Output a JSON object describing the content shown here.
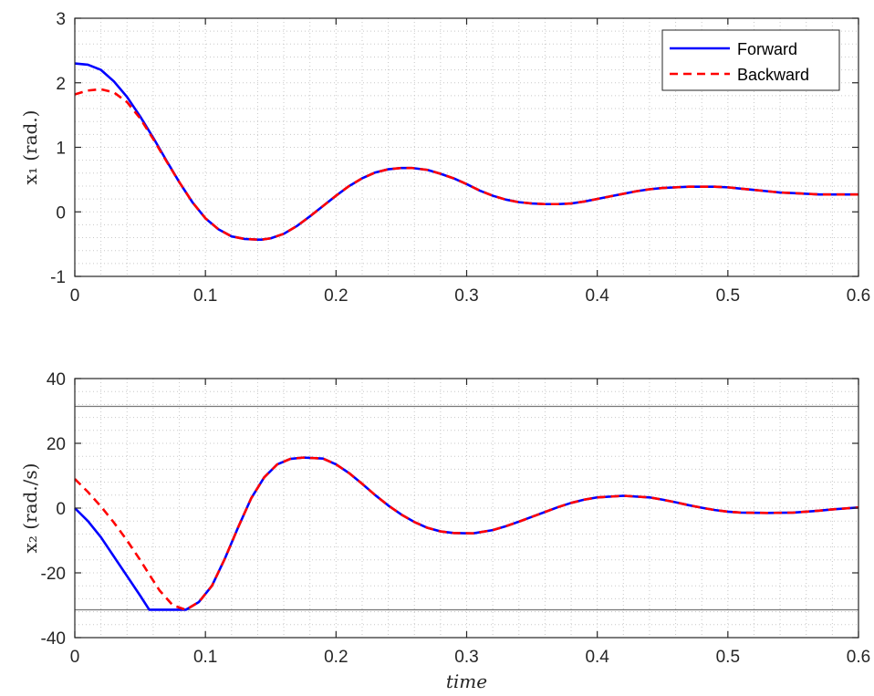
{
  "colors": {
    "forward": "#0000ff",
    "backward": "#ff0000",
    "limit_line": "#777777",
    "axis": "#262626",
    "grid": "#c8c8c8",
    "background": "#ffffff"
  },
  "chart_data": [
    {
      "type": "line",
      "ylabel": "x₁ (rad.)",
      "xlabel": "",
      "xlim": [
        0,
        0.6
      ],
      "ylim": [
        -1,
        3
      ],
      "xticks": [
        0,
        0.1,
        0.2,
        0.3,
        0.4,
        0.5,
        0.6
      ],
      "xtick_labels": [
        "0",
        "0.1",
        "0.2",
        "0.3",
        "0.4",
        "0.5",
        "0.6"
      ],
      "yticks": [
        -1,
        0,
        1,
        2,
        3
      ],
      "ytick_labels": [
        "-1",
        "0",
        "1",
        "2",
        "3"
      ],
      "grid": "minor dotted",
      "legend": {
        "placement": "top-right",
        "entries": [
          "Forward",
          "Backward"
        ]
      },
      "series": [
        {
          "name": "Forward",
          "style": "solid",
          "color": "#0000ff",
          "x": [
            0,
            0.01,
            0.02,
            0.03,
            0.04,
            0.05,
            0.06,
            0.07,
            0.08,
            0.09,
            0.1,
            0.11,
            0.12,
            0.13,
            0.14,
            0.143,
            0.15,
            0.16,
            0.17,
            0.18,
            0.19,
            0.2,
            0.21,
            0.22,
            0.23,
            0.24,
            0.25,
            0.258,
            0.27,
            0.28,
            0.29,
            0.3,
            0.31,
            0.32,
            0.33,
            0.34,
            0.35,
            0.36,
            0.37,
            0.38,
            0.39,
            0.4,
            0.41,
            0.42,
            0.43,
            0.44,
            0.45,
            0.46,
            0.47,
            0.48,
            0.49,
            0.5,
            0.51,
            0.52,
            0.53,
            0.54,
            0.55,
            0.56,
            0.57,
            0.58,
            0.59,
            0.6
          ],
          "y": [
            2.3,
            2.28,
            2.2,
            2.02,
            1.78,
            1.48,
            1.15,
            0.8,
            0.46,
            0.15,
            -0.1,
            -0.27,
            -0.38,
            -0.42,
            -0.43,
            -0.43,
            -0.41,
            -0.34,
            -0.22,
            -0.07,
            0.09,
            0.25,
            0.4,
            0.52,
            0.61,
            0.66,
            0.68,
            0.68,
            0.65,
            0.59,
            0.52,
            0.43,
            0.33,
            0.25,
            0.19,
            0.15,
            0.13,
            0.12,
            0.12,
            0.13,
            0.16,
            0.2,
            0.24,
            0.28,
            0.32,
            0.35,
            0.37,
            0.38,
            0.39,
            0.39,
            0.39,
            0.38,
            0.36,
            0.34,
            0.32,
            0.3,
            0.29,
            0.28,
            0.27,
            0.27,
            0.27,
            0.27
          ]
        },
        {
          "name": "Backward",
          "style": "dashed",
          "color": "#ff0000",
          "x": [
            0,
            0.01,
            0.02,
            0.03,
            0.04,
            0.05,
            0.06,
            0.07,
            0.08,
            0.09,
            0.1,
            0.11,
            0.12,
            0.13,
            0.14,
            0.143,
            0.15,
            0.16,
            0.17,
            0.18,
            0.19,
            0.2,
            0.21,
            0.22,
            0.23,
            0.24,
            0.25,
            0.258,
            0.27,
            0.28,
            0.29,
            0.3,
            0.31,
            0.32,
            0.33,
            0.34,
            0.35,
            0.36,
            0.37,
            0.38,
            0.39,
            0.4,
            0.41,
            0.42,
            0.43,
            0.44,
            0.45,
            0.46,
            0.47,
            0.48,
            0.49,
            0.5,
            0.51,
            0.52,
            0.53,
            0.54,
            0.55,
            0.56,
            0.57,
            0.58,
            0.59,
            0.6
          ],
          "y": [
            1.82,
            1.88,
            1.9,
            1.85,
            1.7,
            1.45,
            1.13,
            0.79,
            0.46,
            0.15,
            -0.1,
            -0.27,
            -0.38,
            -0.42,
            -0.43,
            -0.43,
            -0.41,
            -0.34,
            -0.22,
            -0.07,
            0.09,
            0.25,
            0.4,
            0.52,
            0.61,
            0.66,
            0.68,
            0.68,
            0.65,
            0.59,
            0.52,
            0.43,
            0.33,
            0.25,
            0.19,
            0.15,
            0.13,
            0.12,
            0.12,
            0.13,
            0.16,
            0.2,
            0.24,
            0.28,
            0.32,
            0.35,
            0.37,
            0.38,
            0.39,
            0.39,
            0.39,
            0.38,
            0.36,
            0.34,
            0.32,
            0.3,
            0.29,
            0.28,
            0.27,
            0.27,
            0.27,
            0.27
          ]
        }
      ]
    },
    {
      "type": "line",
      "ylabel": "x₂ (rad./s)",
      "xlabel": "time",
      "xlim": [
        0,
        0.6
      ],
      "ylim": [
        -40,
        40
      ],
      "xticks": [
        0,
        0.1,
        0.2,
        0.3,
        0.4,
        0.5,
        0.6
      ],
      "xtick_labels": [
        "0",
        "0.1",
        "0.2",
        "0.3",
        "0.4",
        "0.5",
        "0.6"
      ],
      "yticks": [
        -40,
        -20,
        0,
        20,
        40
      ],
      "ytick_labels": [
        "-40",
        "-20",
        "0",
        "20",
        "40"
      ],
      "grid": "minor dotted",
      "reference_lines": [
        31.4,
        -31.4
      ],
      "series": [
        {
          "name": "Forward",
          "style": "solid",
          "color": "#0000ff",
          "x": [
            0,
            0.01,
            0.02,
            0.03,
            0.04,
            0.05,
            0.057,
            0.065,
            0.075,
            0.085,
            0.095,
            0.105,
            0.115,
            0.125,
            0.135,
            0.145,
            0.155,
            0.165,
            0.175,
            0.19,
            0.2,
            0.21,
            0.22,
            0.23,
            0.24,
            0.25,
            0.26,
            0.27,
            0.28,
            0.29,
            0.305,
            0.32,
            0.33,
            0.34,
            0.35,
            0.36,
            0.37,
            0.38,
            0.39,
            0.4,
            0.42,
            0.44,
            0.45,
            0.46,
            0.47,
            0.48,
            0.49,
            0.5,
            0.51,
            0.53,
            0.55,
            0.56,
            0.57,
            0.58,
            0.59,
            0.6
          ],
          "y": [
            0,
            -4,
            -9,
            -15,
            -21,
            -27,
            -31.4,
            -31.4,
            -31.4,
            -31.4,
            -29,
            -24,
            -15.5,
            -6,
            3,
            9.5,
            13.5,
            15.2,
            15.6,
            15.3,
            13.5,
            10.8,
            7.5,
            4,
            0.8,
            -2,
            -4.3,
            -6.1,
            -7.2,
            -7.7,
            -7.8,
            -6.8,
            -5.6,
            -4.2,
            -2.7,
            -1.2,
            0.3,
            1.6,
            2.6,
            3.3,
            3.8,
            3.3,
            2.6,
            1.8,
            0.9,
            0.1,
            -0.6,
            -1.1,
            -1.4,
            -1.5,
            -1.4,
            -1.1,
            -0.8,
            -0.4,
            -0.1,
            0.2
          ]
        },
        {
          "name": "Backward",
          "style": "dashed",
          "color": "#ff0000",
          "x": [
            0,
            0.01,
            0.02,
            0.03,
            0.04,
            0.05,
            0.057,
            0.065,
            0.075,
            0.085,
            0.095,
            0.105,
            0.115,
            0.125,
            0.135,
            0.145,
            0.155,
            0.165,
            0.175,
            0.19,
            0.2,
            0.21,
            0.22,
            0.23,
            0.24,
            0.25,
            0.26,
            0.27,
            0.28,
            0.29,
            0.305,
            0.32,
            0.33,
            0.34,
            0.35,
            0.36,
            0.37,
            0.38,
            0.39,
            0.4,
            0.42,
            0.44,
            0.45,
            0.46,
            0.47,
            0.48,
            0.49,
            0.5,
            0.51,
            0.53,
            0.55,
            0.56,
            0.57,
            0.58,
            0.59,
            0.6
          ],
          "y": [
            9,
            5,
            0.5,
            -4.5,
            -10,
            -16,
            -20.5,
            -25.5,
            -30,
            -31.4,
            -29,
            -24,
            -15.5,
            -6,
            3,
            9.5,
            13.5,
            15.2,
            15.6,
            15.3,
            13.5,
            10.8,
            7.5,
            4,
            0.8,
            -2,
            -4.3,
            -6.1,
            -7.2,
            -7.7,
            -7.8,
            -6.8,
            -5.6,
            -4.2,
            -2.7,
            -1.2,
            0.3,
            1.6,
            2.6,
            3.3,
            3.8,
            3.3,
            2.6,
            1.8,
            0.9,
            0.1,
            -0.6,
            -1.1,
            -1.4,
            -1.5,
            -1.4,
            -1.1,
            -0.8,
            -0.4,
            -0.1,
            0.2
          ]
        }
      ]
    }
  ]
}
